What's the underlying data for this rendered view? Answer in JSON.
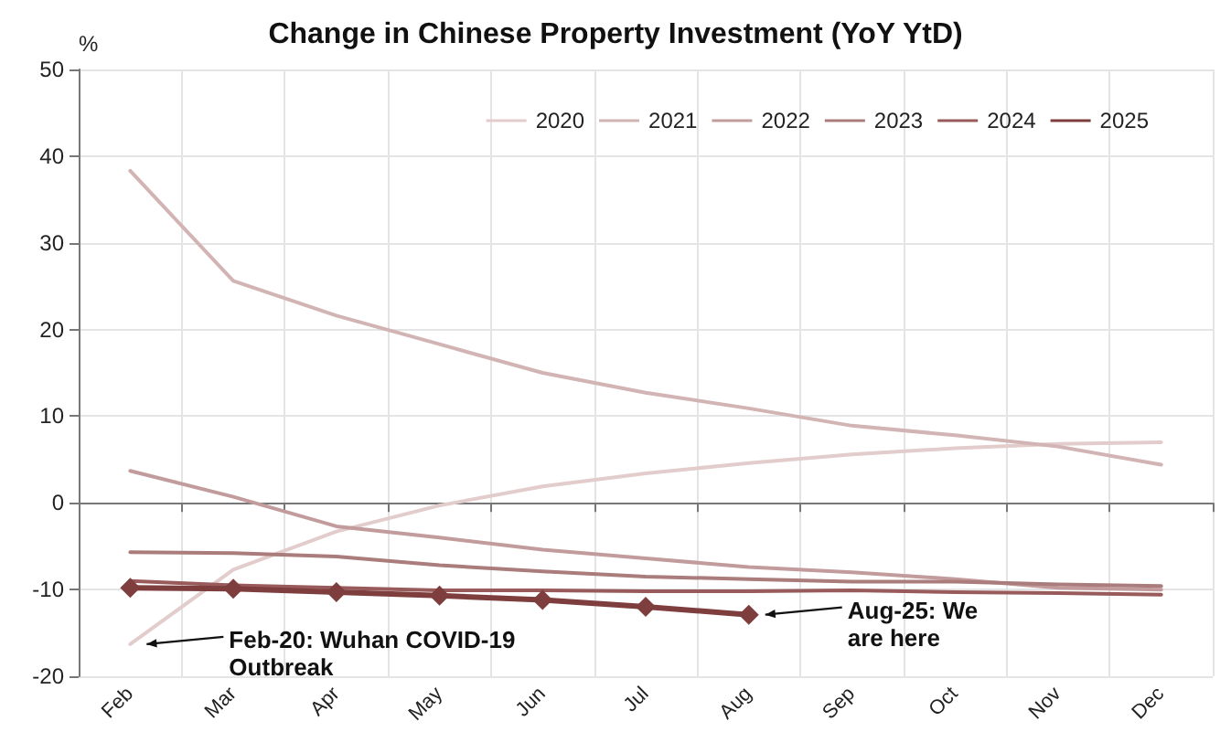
{
  "chart_data": {
    "type": "line",
    "title": "Change in Chinese Property Investment (YoY YtD)",
    "ylabel": "%",
    "categories": [
      "Feb",
      "Mar",
      "Apr",
      "May",
      "Jun",
      "Jul",
      "Aug",
      "Sep",
      "Oct",
      "Nov",
      "Dec"
    ],
    "series": [
      {
        "name": "2020",
        "color": "#e3cccc",
        "values": [
          -16.3,
          -7.7,
          -3.3,
          -0.3,
          1.9,
          3.4,
          4.6,
          5.6,
          6.3,
          6.8,
          7.0
        ]
      },
      {
        "name": "2021",
        "color": "#d2b4b4",
        "values": [
          38.3,
          25.6,
          21.6,
          18.3,
          15.0,
          12.7,
          10.9,
          8.9,
          7.8,
          6.5,
          4.4
        ]
      },
      {
        "name": "2022",
        "color": "#c29c9c",
        "values": [
          3.7,
          0.7,
          -2.7,
          -4.0,
          -5.4,
          -6.4,
          -7.4,
          -8.0,
          -8.8,
          -9.8,
          -10.0
        ]
      },
      {
        "name": "2023",
        "color": "#aa7c7c",
        "values": [
          -5.7,
          -5.8,
          -6.2,
          -7.2,
          -7.9,
          -8.5,
          -8.8,
          -9.1,
          -9.1,
          -9.4,
          -9.6
        ]
      },
      {
        "name": "2024",
        "color": "#985a5a",
        "values": [
          -9.0,
          -9.5,
          -9.8,
          -10.1,
          -10.1,
          -10.2,
          -10.2,
          -10.1,
          -10.3,
          -10.4,
          -10.6
        ]
      },
      {
        "name": "2025",
        "color": "#7f3e3e",
        "marker": "diamond",
        "values": [
          -9.8,
          -9.9,
          -10.3,
          -10.7,
          -11.2,
          -12.0,
          -12.9,
          null,
          null,
          null,
          null
        ]
      }
    ],
    "ylim": [
      -20,
      50
    ],
    "yticks": [
      -20,
      -10,
      0,
      10,
      20,
      30,
      40,
      50
    ],
    "grid": true,
    "legend": "top right",
    "marker": "none",
    "line_style": "solid",
    "annotations": [
      {
        "text": "Feb-20: Wuhan COVID-19\nOutbreak",
        "x": "Feb",
        "y": -16.3
      },
      {
        "text": "Aug-25: We\nare here",
        "x": "Aug",
        "y": -12.9
      }
    ]
  }
}
